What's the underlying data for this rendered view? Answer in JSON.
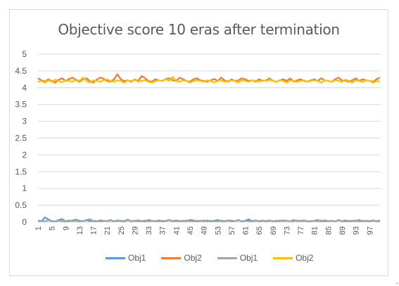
{
  "chart_data": {
    "type": "line",
    "title": "Objective score 10 eras after termination",
    "xlabel": "",
    "ylabel": "",
    "ylim": [
      0,
      5
    ],
    "y_ticks": [
      "0",
      "0.5",
      "1",
      "1.5",
      "2",
      "2.5",
      "3",
      "3.5",
      "4",
      "4.5",
      "5"
    ],
    "x_tick_labels": [
      "1",
      "5",
      "9",
      "13",
      "17",
      "21",
      "25",
      "29",
      "33",
      "37",
      "41",
      "45",
      "49",
      "53",
      "57",
      "61",
      "65",
      "69",
      "73",
      "77",
      "81",
      "85",
      "89",
      "93",
      "97"
    ],
    "x_range": [
      1,
      100
    ],
    "grid": "horizontal",
    "legend_position": "bottom",
    "series": [
      {
        "name": "Obj1",
        "color": "#5b9bd5",
        "values": [
          0.05,
          0.02,
          0.14,
          0.08,
          0.03,
          0.02,
          0.06,
          0.09,
          0.02,
          0.03,
          0.05,
          0.07,
          0.04,
          0.02,
          0.06,
          0.08,
          0.03,
          0.02,
          0.05,
          0.04,
          0.03,
          0.06,
          0.02,
          0.05,
          0.04,
          0.03,
          0.07,
          0.02,
          0.04,
          0.05,
          0.03,
          0.02,
          0.06,
          0.04,
          0.03,
          0.05,
          0.02,
          0.04,
          0.06,
          0.03,
          0.05,
          0.02,
          0.04,
          0.03,
          0.06,
          0.05,
          0.02,
          0.04,
          0.03,
          0.05,
          0.02,
          0.04,
          0.06,
          0.03,
          0.02,
          0.05,
          0.04,
          0.03,
          0.06,
          0.02,
          0.04,
          0.08,
          0.03,
          0.05,
          0.02,
          0.04,
          0.03,
          0.05,
          0.02,
          0.04,
          0.03,
          0.05,
          0.04,
          0.02,
          0.06,
          0.03,
          0.04,
          0.05,
          0.02,
          0.03,
          0.04,
          0.06,
          0.02,
          0.05,
          0.03,
          0.04,
          0.02,
          0.06,
          0.03,
          0.05,
          0.02,
          0.04,
          0.03,
          0.06,
          0.02,
          0.04,
          0.03,
          0.05,
          0.02,
          0.05
        ]
      },
      {
        "name": "Obj2",
        "color": "#ed7d31",
        "values": [
          4.28,
          4.22,
          4.18,
          4.25,
          4.2,
          4.15,
          4.24,
          4.28,
          4.2,
          4.26,
          4.3,
          4.22,
          4.18,
          4.25,
          4.28,
          4.2,
          4.15,
          4.24,
          4.3,
          4.27,
          4.2,
          4.18,
          4.25,
          4.4,
          4.25,
          4.2,
          4.22,
          4.18,
          4.25,
          4.2,
          4.35,
          4.28,
          4.2,
          4.18,
          4.25,
          4.22,
          4.2,
          4.26,
          4.28,
          4.22,
          4.2,
          4.3,
          4.25,
          4.2,
          4.18,
          4.25,
          4.28,
          4.22,
          4.2,
          4.18,
          4.22,
          4.26,
          4.2,
          4.3,
          4.22,
          4.18,
          4.25,
          4.2,
          4.22,
          4.28,
          4.25,
          4.2,
          4.22,
          4.18,
          4.25,
          4.2,
          4.22,
          4.28,
          4.2,
          4.18,
          4.22,
          4.25,
          4.2,
          4.28,
          4.18,
          4.22,
          4.25,
          4.2,
          4.18,
          4.22,
          4.25,
          4.2,
          4.28,
          4.22,
          4.2,
          4.18,
          4.25,
          4.3,
          4.22,
          4.2,
          4.18,
          4.22,
          4.28,
          4.2,
          4.25,
          4.22,
          4.2,
          4.18,
          4.25,
          4.3
        ]
      },
      {
        "name": "Obj1",
        "color": "#a5a5a5",
        "values": [
          0.03,
          0.04,
          0.02,
          0.05,
          0.03,
          0.02,
          0.04,
          0.03,
          0.02,
          0.05,
          0.03,
          0.04,
          0.02,
          0.03,
          0.05,
          0.02,
          0.04,
          0.03,
          0.02,
          0.04,
          0.03,
          0.05,
          0.02,
          0.04,
          0.03,
          0.02,
          0.05,
          0.03,
          0.04,
          0.02,
          0.03,
          0.05,
          0.02,
          0.04,
          0.03,
          0.02,
          0.04,
          0.03,
          0.05,
          0.02,
          0.03,
          0.04,
          0.02,
          0.05,
          0.03,
          0.02,
          0.04,
          0.03,
          0.05,
          0.02,
          0.04,
          0.03,
          0.02,
          0.05,
          0.03,
          0.04,
          0.02,
          0.03,
          0.05,
          0.02,
          0.04,
          0.03,
          0.02,
          0.04,
          0.03,
          0.05,
          0.02,
          0.04,
          0.03,
          0.02,
          0.05,
          0.03,
          0.04,
          0.02,
          0.03,
          0.05,
          0.02,
          0.04,
          0.03,
          0.02,
          0.04,
          0.03,
          0.05,
          0.02,
          0.03,
          0.04,
          0.02,
          0.05,
          0.03,
          0.02,
          0.04,
          0.03,
          0.05,
          0.02,
          0.04,
          0.03,
          0.02,
          0.04,
          0.03,
          0.02
        ]
      },
      {
        "name": "Obj2",
        "color": "#ffc000",
        "values": [
          4.18,
          4.2,
          4.15,
          4.22,
          4.18,
          4.24,
          4.2,
          4.16,
          4.22,
          4.2,
          4.18,
          4.24,
          4.2,
          4.3,
          4.2,
          4.15,
          4.22,
          4.2,
          4.18,
          4.22,
          4.25,
          4.2,
          4.18,
          4.22,
          4.2,
          4.15,
          4.22,
          4.2,
          4.24,
          4.18,
          4.2,
          4.22,
          4.18,
          4.15,
          4.2,
          4.22,
          4.2,
          4.25,
          4.2,
          4.32,
          4.2,
          4.18,
          4.22,
          4.2,
          4.15,
          4.2,
          4.22,
          4.2,
          4.18,
          4.22,
          4.2,
          4.15,
          4.2,
          4.22,
          4.18,
          4.2,
          4.22,
          4.2,
          4.15,
          4.22,
          4.2,
          4.18,
          4.22,
          4.2,
          4.18,
          4.22,
          4.2,
          4.24,
          4.2,
          4.18,
          4.22,
          4.2,
          4.15,
          4.22,
          4.2,
          4.18,
          4.2,
          4.22,
          4.18,
          4.2,
          4.22,
          4.2,
          4.15,
          4.22,
          4.2,
          4.18,
          4.22,
          4.2,
          4.18,
          4.24,
          4.2,
          4.15,
          4.22,
          4.2,
          4.18,
          4.22,
          4.2,
          4.15,
          4.2,
          4.18
        ]
      }
    ]
  },
  "trailing_mark": "."
}
